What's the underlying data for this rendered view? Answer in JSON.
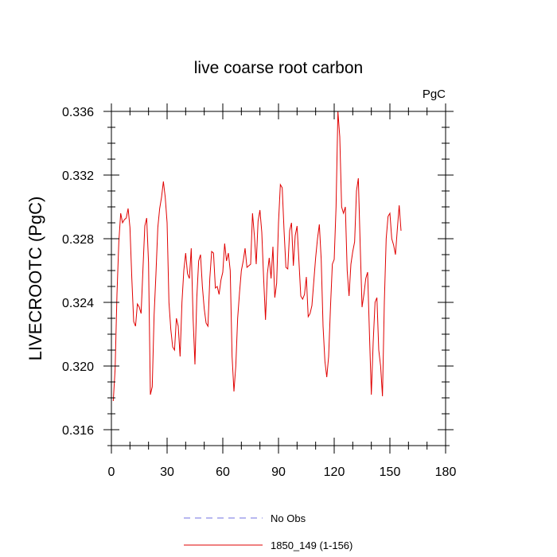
{
  "chart_data": {
    "type": "line",
    "title": "live coarse root carbon",
    "units_label": "PgC",
    "xlabel": "",
    "ylabel": "LIVECROOTC  (PgC)",
    "xlim": [
      0,
      180
    ],
    "ylim": [
      0.315,
      0.336
    ],
    "xticks": [
      0,
      30,
      60,
      90,
      120,
      150,
      180
    ],
    "xtick_labels": [
      "0",
      "30",
      "60",
      "90",
      "120",
      "150",
      "180"
    ],
    "yticks": [
      0.316,
      0.32,
      0.324,
      0.328,
      0.332,
      0.336
    ],
    "ytick_labels": [
      "0.316",
      "0.320",
      "0.324",
      "0.328",
      "0.332",
      "0.336"
    ],
    "series": [
      {
        "name": "No Obs",
        "color": "#7070e0",
        "dashed": true,
        "x": [],
        "y": []
      },
      {
        "name": "1850_149 (1-156)",
        "color": "#e00000",
        "dashed": false,
        "x": [
          1,
          2,
          3,
          4,
          5,
          6,
          7,
          8,
          9,
          10,
          11,
          12,
          13,
          14,
          15,
          16,
          17,
          18,
          19,
          20,
          21,
          22,
          23,
          24,
          25,
          26,
          27,
          28,
          29,
          30,
          31,
          32,
          33,
          34,
          35,
          36,
          37,
          38,
          39,
          40,
          41,
          42,
          43,
          44,
          45,
          46,
          47,
          48,
          49,
          50,
          51,
          52,
          53,
          54,
          55,
          56,
          57,
          58,
          59,
          60,
          61,
          62,
          63,
          64,
          65,
          66,
          67,
          68,
          69,
          70,
          71,
          72,
          73,
          74,
          75,
          76,
          77,
          78,
          79,
          80,
          81,
          82,
          83,
          84,
          85,
          86,
          87,
          88,
          89,
          90,
          91,
          92,
          93,
          94,
          95,
          96,
          97,
          98,
          99,
          100,
          101,
          102,
          103,
          104,
          105,
          106,
          107,
          108,
          109,
          110,
          111,
          112,
          113,
          114,
          115,
          116,
          117,
          118,
          119,
          120,
          121,
          122,
          123,
          124,
          125,
          126,
          127,
          128,
          129,
          130,
          131,
          132,
          133,
          134,
          135,
          136,
          137,
          138,
          139,
          140,
          141,
          142,
          143,
          144,
          145,
          146,
          147,
          148,
          149,
          150,
          151,
          152,
          153,
          154,
          155,
          156
        ],
        "y": [
          0.3178,
          0.3198,
          0.3245,
          0.3278,
          0.3296,
          0.329,
          0.3292,
          0.3293,
          0.3299,
          0.3287,
          0.3255,
          0.3228,
          0.3225,
          0.3239,
          0.3237,
          0.3233,
          0.3261,
          0.3288,
          0.3293,
          0.3265,
          0.3182,
          0.3187,
          0.3232,
          0.3258,
          0.3287,
          0.3299,
          0.3306,
          0.3316,
          0.3306,
          0.329,
          0.324,
          0.3223,
          0.3212,
          0.321,
          0.323,
          0.3225,
          0.3206,
          0.324,
          0.326,
          0.3271,
          0.3258,
          0.3255,
          0.3274,
          0.323,
          0.3201,
          0.3243,
          0.3266,
          0.327,
          0.325,
          0.3236,
          0.3227,
          0.3225,
          0.3255,
          0.3272,
          0.3271,
          0.3249,
          0.325,
          0.3245,
          0.3254,
          0.3259,
          0.3277,
          0.3266,
          0.3271,
          0.326,
          0.3206,
          0.3184,
          0.32,
          0.323,
          0.3246,
          0.326,
          0.3266,
          0.3274,
          0.3262,
          0.3263,
          0.3264,
          0.3296,
          0.3282,
          0.3264,
          0.3291,
          0.3298,
          0.3284,
          0.3255,
          0.3229,
          0.3258,
          0.3268,
          0.3255,
          0.3275,
          0.3243,
          0.3252,
          0.329,
          0.3314,
          0.3312,
          0.3285,
          0.3262,
          0.3261,
          0.3285,
          0.329,
          0.3263,
          0.3282,
          0.3288,
          0.3266,
          0.3244,
          0.3242,
          0.3245,
          0.3256,
          0.3231,
          0.3233,
          0.3238,
          0.3253,
          0.3268,
          0.328,
          0.3289,
          0.3267,
          0.3225,
          0.3203,
          0.3193,
          0.3206,
          0.3237,
          0.3264,
          0.3267,
          0.33,
          0.336,
          0.3344,
          0.33,
          0.3296,
          0.33,
          0.326,
          0.3244,
          0.3264,
          0.3272,
          0.3278,
          0.331,
          0.3318,
          0.3276,
          0.3237,
          0.3245,
          0.3255,
          0.3259,
          0.322,
          0.3182,
          0.3215,
          0.324,
          0.3243,
          0.321,
          0.32,
          0.3181,
          0.324,
          0.328,
          0.3294,
          0.3296,
          0.328,
          0.3276,
          0.327,
          0.3286,
          0.3301,
          0.3285
        ]
      }
    ],
    "legend": {
      "position": "bottom",
      "entries": [
        {
          "label": "No Obs",
          "series_index": 0
        },
        {
          "label": "1850_149 (1-156)",
          "series_index": 1
        }
      ]
    }
  }
}
